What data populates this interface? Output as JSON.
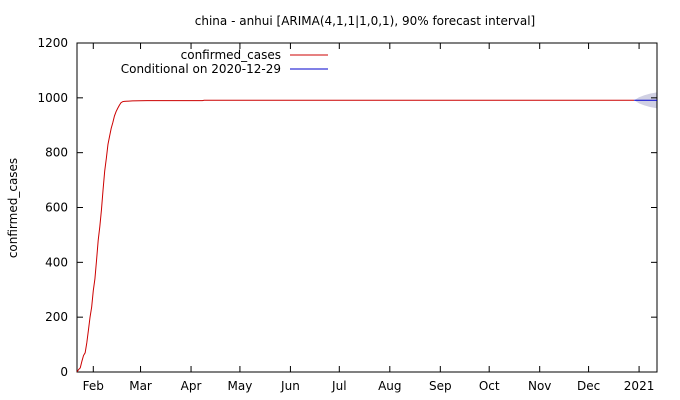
{
  "chart_data": {
    "type": "line",
    "title": "china - anhui [ARIMA(4,1,1|1,0,1), 90% forecast interval]",
    "xlabel": "",
    "ylabel": "confirmed_cases",
    "ylim": [
      0,
      1200
    ],
    "xlim": [
      "2020-01-22",
      "2021-01-12"
    ],
    "yticks": [
      0,
      200,
      400,
      600,
      800,
      1000,
      1200
    ],
    "xticks": [
      {
        "label": "Feb",
        "date": "2020-02-01"
      },
      {
        "label": "Mar",
        "date": "2020-03-01"
      },
      {
        "label": "Apr",
        "date": "2020-04-01"
      },
      {
        "label": "May",
        "date": "2020-05-01"
      },
      {
        "label": "Jun",
        "date": "2020-06-01"
      },
      {
        "label": "Jul",
        "date": "2020-07-01"
      },
      {
        "label": "Aug",
        "date": "2020-08-01"
      },
      {
        "label": "Sep",
        "date": "2020-09-01"
      },
      {
        "label": "Oct",
        "date": "2020-10-01"
      },
      {
        "label": "Nov",
        "date": "2020-11-01"
      },
      {
        "label": "Dec",
        "date": "2020-12-01"
      },
      {
        "label": "2021",
        "date": "2021-01-01"
      }
    ],
    "grid": false,
    "legend_position": "top-left",
    "series": [
      {
        "name": "confirmed_cases",
        "color": "#cc0000",
        "x": [
          "2020-01-22",
          "2020-01-23",
          "2020-01-24",
          "2020-01-25",
          "2020-01-26",
          "2020-01-27",
          "2020-01-28",
          "2020-01-29",
          "2020-01-30",
          "2020-01-31",
          "2020-02-01",
          "2020-02-02",
          "2020-02-03",
          "2020-02-04",
          "2020-02-05",
          "2020-02-06",
          "2020-02-07",
          "2020-02-08",
          "2020-02-09",
          "2020-02-10",
          "2020-02-11",
          "2020-02-12",
          "2020-02-13",
          "2020-02-14",
          "2020-02-15",
          "2020-02-16",
          "2020-02-17",
          "2020-02-18",
          "2020-02-19",
          "2020-02-20",
          "2020-02-25",
          "2020-03-05",
          "2020-03-20",
          "2020-04-01",
          "2020-04-08",
          "2020-04-09",
          "2020-04-20",
          "2020-06-01",
          "2020-08-01",
          "2020-10-01",
          "2020-12-01",
          "2020-12-29"
        ],
        "y": [
          1,
          9,
          15,
          39,
          60,
          70,
          106,
          152,
          200,
          237,
          297,
          340,
          408,
          480,
          530,
          591,
          665,
          733,
          779,
          830,
          860,
          889,
          910,
          934,
          950,
          962,
          973,
          982,
          986,
          987,
          989,
          990,
          990,
          990,
          990,
          991,
          991,
          991,
          991,
          991,
          991,
          991
        ]
      },
      {
        "name": "Conditional on 2020-12-29",
        "color": "#0000cc",
        "x": [
          "2020-12-29",
          "2021-01-01",
          "2021-01-04",
          "2021-01-08",
          "2021-01-12"
        ],
        "y": [
          991,
          991,
          991,
          991,
          991
        ],
        "lower": [
          991,
          980,
          973,
          966,
          962
        ],
        "upper": [
          991,
          1002,
          1009,
          1016,
          1020
        ]
      }
    ]
  }
}
